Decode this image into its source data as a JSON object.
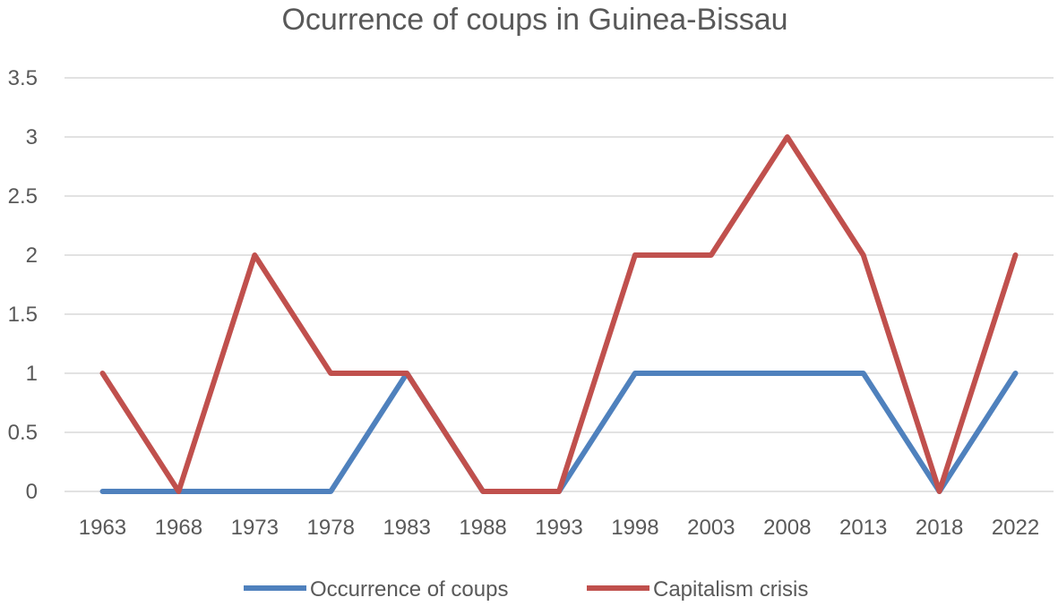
{
  "chart_data": {
    "type": "line",
    "title": "Ocurrence of coups in Guinea-Bissau",
    "xlabel": "",
    "ylabel": "",
    "categories": [
      "1963",
      "1968",
      "1973",
      "1978",
      "1983",
      "1988",
      "1993",
      "1998",
      "2003",
      "2008",
      "2013",
      "2018",
      "2022"
    ],
    "y_ticks": [
      "0",
      "0.5",
      "1",
      "1.5",
      "2",
      "2.5",
      "3",
      "3.5"
    ],
    "ylim": [
      0,
      3.5
    ],
    "grid": true,
    "legend_position": "bottom",
    "series": [
      {
        "name": "Occurrence of coups",
        "color": "#4f81bd",
        "values": [
          0,
          0,
          0,
          0,
          1,
          0,
          0,
          1,
          1,
          1,
          1,
          0,
          1
        ]
      },
      {
        "name": "Capitalism crisis",
        "color": "#c0504d",
        "values": [
          1,
          0,
          2,
          1,
          1,
          0,
          0,
          2,
          2,
          3,
          2,
          0,
          2
        ]
      }
    ]
  }
}
